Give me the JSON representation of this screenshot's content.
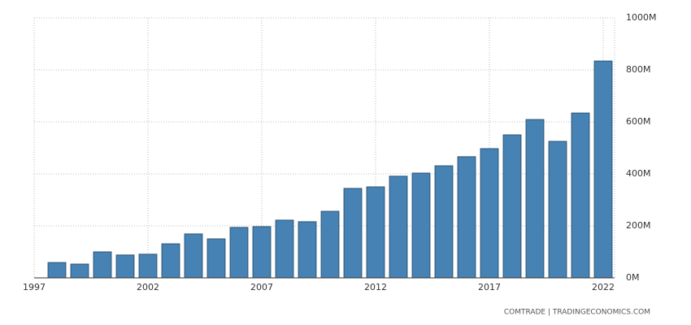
{
  "chart_data": {
    "type": "bar",
    "x": [
      1998,
      1999,
      2000,
      2001,
      2002,
      2003,
      2004,
      2005,
      2006,
      2007,
      2008,
      2009,
      2010,
      2011,
      2012,
      2013,
      2014,
      2015,
      2016,
      2017,
      2018,
      2019,
      2020,
      2021,
      2022
    ],
    "values": [
      59000000,
      53000000,
      100000000,
      88000000,
      91000000,
      131000000,
      169000000,
      150000000,
      194000000,
      197000000,
      222000000,
      216000000,
      256000000,
      344000000,
      350000000,
      391000000,
      403000000,
      431000000,
      466000000,
      497000000,
      550000000,
      609000000,
      525000000,
      634000000,
      834000000
    ],
    "color": "#4682b4",
    "xlim": [
      1997,
      2022.5
    ],
    "xticks": [
      1997,
      2002,
      2007,
      2012,
      2017,
      2022
    ],
    "ylim": [
      0,
      1000000000
    ],
    "yticks": [
      {
        "value": 0,
        "label": "0M"
      },
      {
        "value": 200000000,
        "label": "200M"
      },
      {
        "value": 400000000,
        "label": "400M"
      },
      {
        "value": 600000000,
        "label": "600M"
      },
      {
        "value": 800000000,
        "label": "800M"
      },
      {
        "value": 1000000000,
        "label": "1000M"
      }
    ],
    "grid": true,
    "source": "COMTRADE | TRADINGECONOMICS.COM"
  }
}
